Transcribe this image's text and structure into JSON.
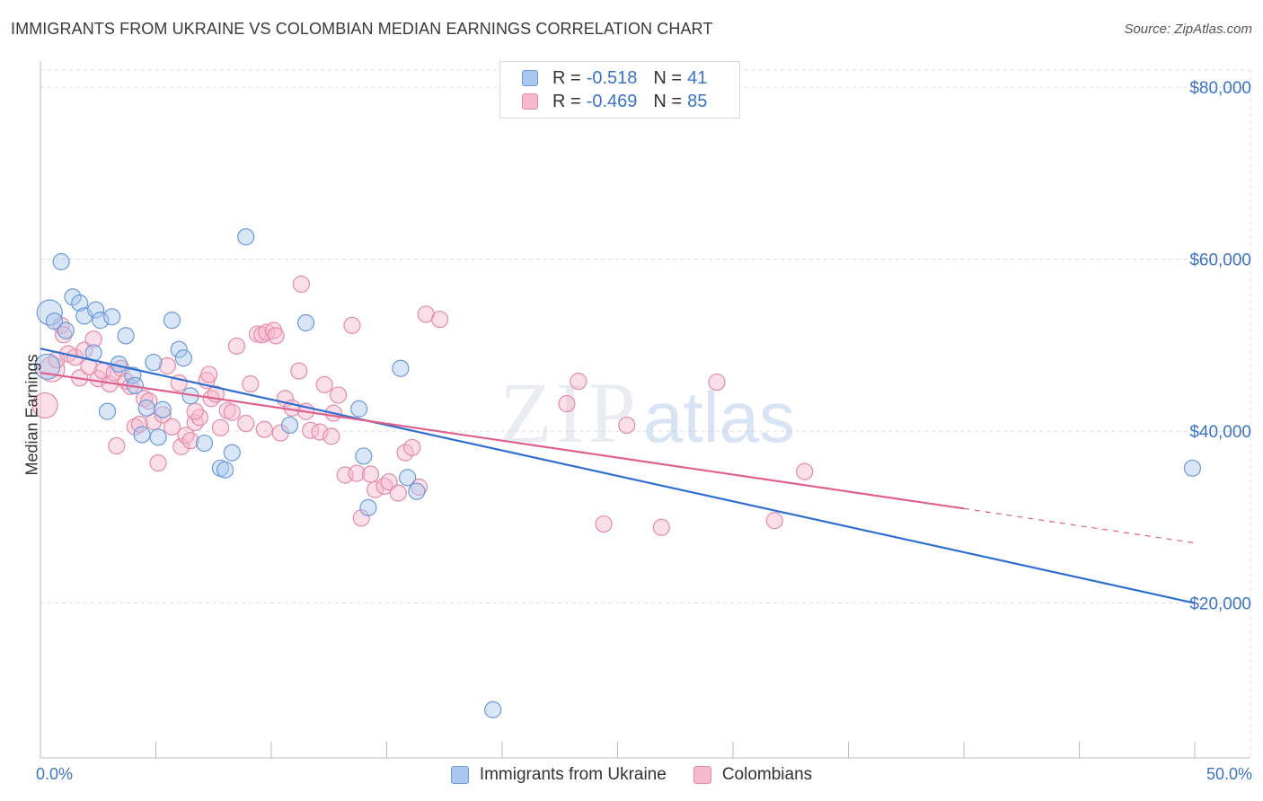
{
  "header": {
    "title": "IMMIGRANTS FROM UKRAINE VS COLOMBIAN MEDIAN EARNINGS CORRELATION CHART",
    "source": "Source: ZipAtlas.com"
  },
  "watermark": {
    "zip": "ZIP",
    "atlas": "atlas"
  },
  "legend": {
    "rows": [
      {
        "r_label": "R =",
        "r_value": "-0.518",
        "n_label": "N =",
        "n_value": "41",
        "color": "#a8c8f0"
      },
      {
        "r_label": "R =",
        "r_value": "-0.469",
        "n_label": "N =",
        "n_value": "85",
        "color": "#f6b8cc"
      }
    ]
  },
  "colors": {
    "blue_fill": "#a8c8f0",
    "blue_stroke": "#6a9ad8",
    "blue_line": "#2f6fd0",
    "pink_fill": "#f6b8cc",
    "pink_stroke": "#e58aa8",
    "pink_line": "#e0608c",
    "axis_text": "#3b73c8",
    "grid": "#dcdcdc"
  },
  "chart_data": {
    "type": "scatter",
    "title": "IMMIGRANTS FROM UKRAINE VS COLOMBIAN MEDIAN EARNINGS CORRELATION CHART",
    "xlabel": "",
    "ylabel": "Median Earnings",
    "xlim": [
      0,
      50
    ],
    "ylim": [
      2000,
      82000
    ],
    "x_tick_labels": [
      "0.0%",
      "50.0%"
    ],
    "y_ticks": [
      20000,
      40000,
      60000,
      80000
    ],
    "y_tick_labels": [
      "$20,000",
      "$40,000",
      "$60,000",
      "$80,000"
    ],
    "grid": true,
    "legend_position": "top-center",
    "series": [
      {
        "name": "Immigrants from Ukraine",
        "color": "#a8c8f0",
        "points": [
          [
            0.3,
            47500
          ],
          [
            0.4,
            53800
          ],
          [
            0.6,
            52800
          ],
          [
            0.9,
            59700
          ],
          [
            1.1,
            51700
          ],
          [
            1.4,
            55600
          ],
          [
            1.7,
            54900
          ],
          [
            1.9,
            53400
          ],
          [
            2.3,
            49100
          ],
          [
            2.4,
            54100
          ],
          [
            2.6,
            52900
          ],
          [
            2.9,
            42300
          ],
          [
            3.1,
            53300
          ],
          [
            3.4,
            47800
          ],
          [
            3.7,
            51100
          ],
          [
            4.0,
            46500
          ],
          [
            4.1,
            45300
          ],
          [
            4.4,
            39600
          ],
          [
            4.6,
            42700
          ],
          [
            4.9,
            48000
          ],
          [
            5.1,
            39300
          ],
          [
            5.3,
            42500
          ],
          [
            5.7,
            52900
          ],
          [
            6.0,
            49500
          ],
          [
            6.2,
            48500
          ],
          [
            6.5,
            44100
          ],
          [
            7.1,
            38600
          ],
          [
            7.8,
            35700
          ],
          [
            8.0,
            35500
          ],
          [
            8.3,
            37500
          ],
          [
            8.9,
            62600
          ],
          [
            10.8,
            40700
          ],
          [
            11.5,
            52600
          ],
          [
            13.8,
            42600
          ],
          [
            14.0,
            37100
          ],
          [
            14.2,
            31100
          ],
          [
            15.6,
            47300
          ],
          [
            15.9,
            34600
          ],
          [
            16.3,
            33000
          ],
          [
            19.6,
            7600
          ],
          [
            49.9,
            35700
          ]
        ]
      },
      {
        "name": "Colombians",
        "color": "#f6b8cc",
        "points": [
          [
            0.2,
            43000
          ],
          [
            0.5,
            47200
          ],
          [
            0.7,
            48300
          ],
          [
            0.9,
            52300
          ],
          [
            1.0,
            51200
          ],
          [
            1.2,
            49000
          ],
          [
            1.5,
            48600
          ],
          [
            1.7,
            46200
          ],
          [
            1.9,
            49400
          ],
          [
            2.1,
            47500
          ],
          [
            2.3,
            50700
          ],
          [
            2.5,
            46100
          ],
          [
            2.7,
            47000
          ],
          [
            3.0,
            45500
          ],
          [
            3.2,
            46800
          ],
          [
            3.5,
            47300
          ],
          [
            3.7,
            45800
          ],
          [
            3.9,
            45200
          ],
          [
            4.1,
            40500
          ],
          [
            4.3,
            40800
          ],
          [
            4.5,
            43800
          ],
          [
            4.7,
            43500
          ],
          [
            4.9,
            41100
          ],
          [
            5.1,
            36300
          ],
          [
            5.3,
            41900
          ],
          [
            5.5,
            47600
          ],
          [
            5.7,
            40500
          ],
          [
            6.0,
            45600
          ],
          [
            6.1,
            38200
          ],
          [
            6.3,
            39500
          ],
          [
            6.5,
            38900
          ],
          [
            6.7,
            41000
          ],
          [
            6.9,
            41600
          ],
          [
            7.2,
            45900
          ],
          [
            7.3,
            46600
          ],
          [
            7.4,
            43800
          ],
          [
            7.6,
            44300
          ],
          [
            7.8,
            40400
          ],
          [
            8.1,
            42400
          ],
          [
            8.3,
            42200
          ],
          [
            8.5,
            49900
          ],
          [
            8.9,
            40900
          ],
          [
            9.1,
            45500
          ],
          [
            9.4,
            51300
          ],
          [
            9.6,
            51200
          ],
          [
            9.8,
            51500
          ],
          [
            10.1,
            51700
          ],
          [
            10.2,
            51100
          ],
          [
            10.4,
            39800
          ],
          [
            10.6,
            43800
          ],
          [
            10.9,
            42700
          ],
          [
            11.2,
            47000
          ],
          [
            11.3,
            57100
          ],
          [
            11.5,
            42300
          ],
          [
            11.7,
            40100
          ],
          [
            12.1,
            39900
          ],
          [
            12.3,
            45400
          ],
          [
            12.6,
            39400
          ],
          [
            12.9,
            44200
          ],
          [
            13.2,
            34900
          ],
          [
            13.5,
            52300
          ],
          [
            13.7,
            35100
          ],
          [
            13.9,
            29900
          ],
          [
            14.3,
            35000
          ],
          [
            14.5,
            33200
          ],
          [
            14.9,
            33600
          ],
          [
            15.1,
            34100
          ],
          [
            15.5,
            32800
          ],
          [
            15.8,
            37500
          ],
          [
            16.1,
            38100
          ],
          [
            16.4,
            33500
          ],
          [
            16.7,
            53600
          ],
          [
            17.3,
            53000
          ],
          [
            22.8,
            43200
          ],
          [
            23.3,
            45800
          ],
          [
            24.4,
            29200
          ],
          [
            25.4,
            40700
          ],
          [
            26.9,
            28800
          ],
          [
            29.3,
            45700
          ],
          [
            31.8,
            29600
          ],
          [
            33.1,
            35300
          ],
          [
            9.7,
            40200
          ],
          [
            12.7,
            42100
          ],
          [
            6.7,
            42300
          ],
          [
            3.3,
            38300
          ]
        ]
      }
    ],
    "trendlines": [
      {
        "series": "Immigrants from Ukraine",
        "x": [
          0,
          50
        ],
        "y": [
          49600,
          20000
        ],
        "style": "solid"
      },
      {
        "series": "Colombians",
        "x": [
          0,
          40
        ],
        "y": [
          46800,
          31000
        ],
        "style": "solid",
        "extension_x": [
          40,
          50
        ],
        "extension_y": [
          31000,
          27000
        ],
        "extension_style": "dashed"
      }
    ]
  }
}
